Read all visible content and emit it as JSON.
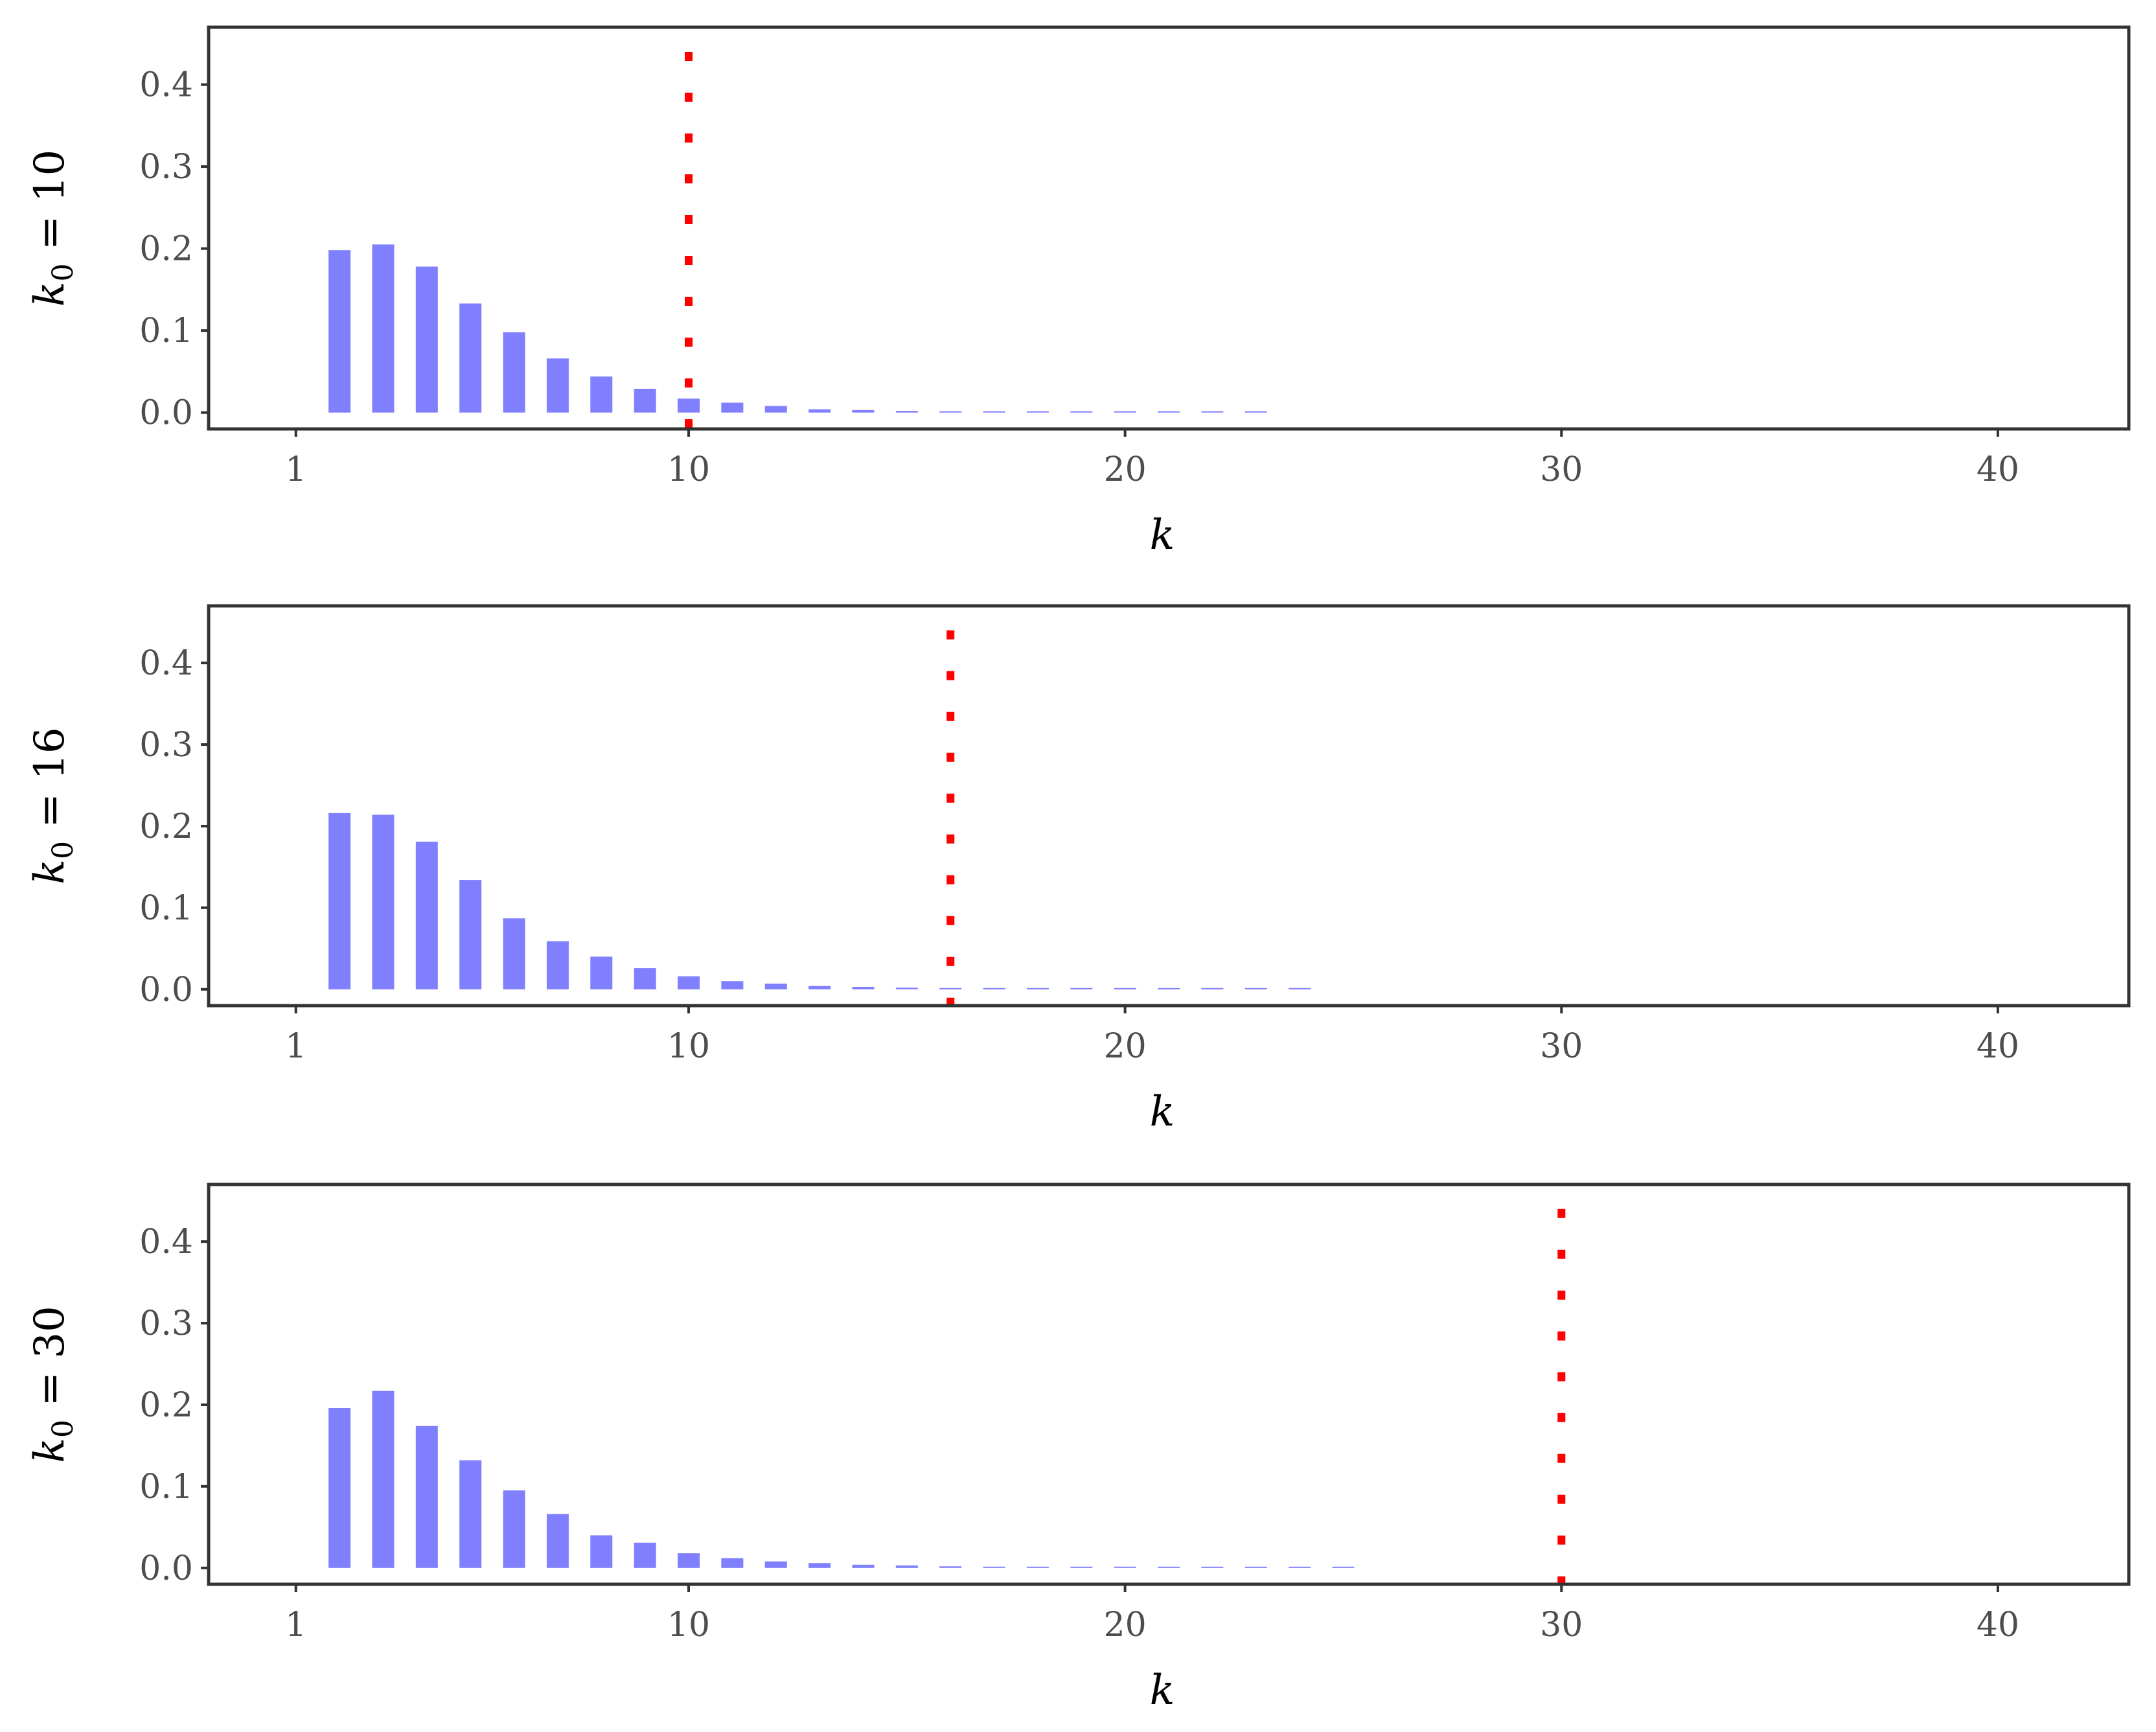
{
  "chart_data": [
    {
      "type": "bar",
      "ylabel_main": "k",
      "ylabel_sub": "0",
      "ylabel_rest": " = 10",
      "xlabel": "k",
      "x_ticks": [
        1,
        10,
        20,
        30,
        40
      ],
      "y_ticks": [
        "0.0",
        "0.1",
        "0.2",
        "0.3",
        "0.4"
      ],
      "y_tick_values": [
        0.0,
        0.1,
        0.2,
        0.3,
        0.4
      ],
      "xlim": [
        -1,
        43
      ],
      "ylim": [
        -0.02,
        0.47
      ],
      "vline_x": 10,
      "x": [
        2,
        3,
        4,
        5,
        6,
        7,
        8,
        9,
        10,
        11,
        12,
        13,
        14,
        15,
        16,
        17,
        18,
        19,
        20,
        21,
        22,
        23
      ],
      "values": [
        0.198,
        0.205,
        0.178,
        0.133,
        0.098,
        0.066,
        0.044,
        0.029,
        0.017,
        0.012,
        0.008,
        0.004,
        0.003,
        0.002,
        0.0015,
        0.001,
        0.0008,
        0.0006,
        0.0004,
        0.0003,
        0.0002,
        0.0001
      ]
    },
    {
      "type": "bar",
      "ylabel_main": "k",
      "ylabel_sub": "0",
      "ylabel_rest": " = 16",
      "xlabel": "k",
      "x_ticks": [
        1,
        10,
        20,
        30,
        40
      ],
      "y_ticks": [
        "0.0",
        "0.1",
        "0.2",
        "0.3",
        "0.4"
      ],
      "y_tick_values": [
        0.0,
        0.1,
        0.2,
        0.3,
        0.4
      ],
      "xlim": [
        -1,
        43
      ],
      "ylim": [
        -0.02,
        0.47
      ],
      "vline_x": 16,
      "x": [
        2,
        3,
        4,
        5,
        6,
        7,
        8,
        9,
        10,
        11,
        12,
        13,
        14,
        15,
        16,
        17,
        18,
        19,
        20,
        21,
        22,
        23,
        24
      ],
      "values": [
        0.216,
        0.214,
        0.181,
        0.134,
        0.087,
        0.059,
        0.04,
        0.026,
        0.016,
        0.01,
        0.007,
        0.004,
        0.003,
        0.002,
        0.0015,
        0.001,
        0.0008,
        0.0006,
        0.0005,
        0.0004,
        0.0003,
        0.0002,
        0.0001
      ]
    },
    {
      "type": "bar",
      "ylabel_main": "k",
      "ylabel_sub": "0",
      "ylabel_rest": " = 30",
      "xlabel": "k",
      "x_ticks": [
        1,
        10,
        20,
        30,
        40
      ],
      "y_ticks": [
        "0.0",
        "0.1",
        "0.2",
        "0.3",
        "0.4"
      ],
      "y_tick_values": [
        0.0,
        0.1,
        0.2,
        0.3,
        0.4
      ],
      "xlim": [
        -1,
        43
      ],
      "ylim": [
        -0.02,
        0.47
      ],
      "vline_x": 30,
      "x": [
        2,
        3,
        4,
        5,
        6,
        7,
        8,
        9,
        10,
        11,
        12,
        13,
        14,
        15,
        16,
        17,
        18,
        19,
        20,
        21,
        22,
        23,
        24,
        25
      ],
      "values": [
        0.196,
        0.217,
        0.174,
        0.132,
        0.095,
        0.066,
        0.04,
        0.031,
        0.018,
        0.012,
        0.008,
        0.006,
        0.004,
        0.003,
        0.002,
        0.0015,
        0.001,
        0.0008,
        0.0006,
        0.0005,
        0.0004,
        0.0003,
        0.0002,
        0.0001
      ]
    }
  ],
  "colors": {
    "bar": "#8080ff",
    "vline": "#ff0000",
    "axis": "#333333",
    "tick_text": "#4d4d4d"
  }
}
